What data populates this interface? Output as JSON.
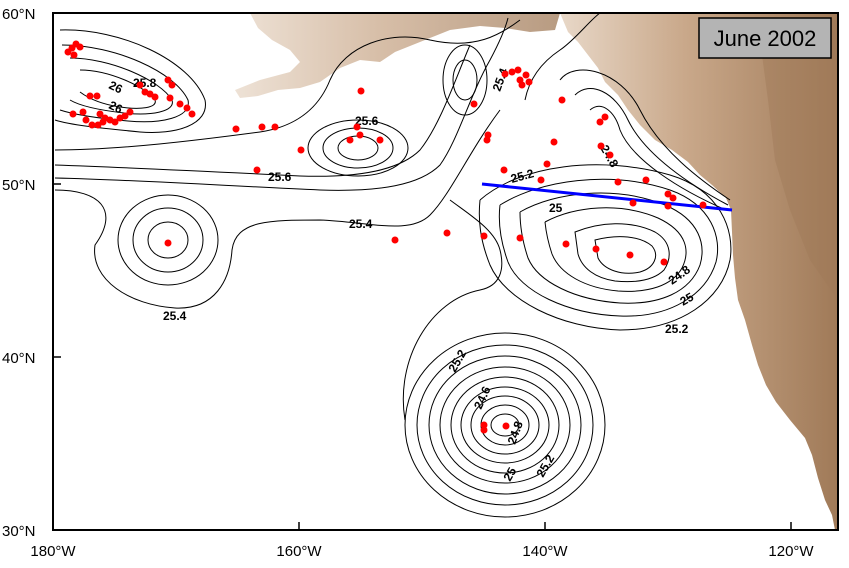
{
  "title_box": {
    "text": "June 2002"
  },
  "axes": {
    "lat_labels": [
      "60°N",
      "50°N",
      "40°N",
      "30°N"
    ],
    "lon_labels": [
      "180°W",
      "160°W",
      "140°W",
      "120°W"
    ]
  },
  "contour_labels": [
    "26",
    "25.8",
    "26",
    "25.6",
    "25.6",
    "25.4",
    "25.4",
    "25.4",
    "25.2",
    "25",
    "24.8",
    "24.8",
    "25",
    "25.2",
    "25.2",
    "24.6",
    "24.8",
    "25",
    "25.2"
  ],
  "colors": {
    "land": "#c9a88a",
    "land_dark": "#a07a58",
    "contour": "#000000",
    "station": "#ff0000",
    "section_line": "#0000ff",
    "title_box": "#b4b4b4"
  }
}
